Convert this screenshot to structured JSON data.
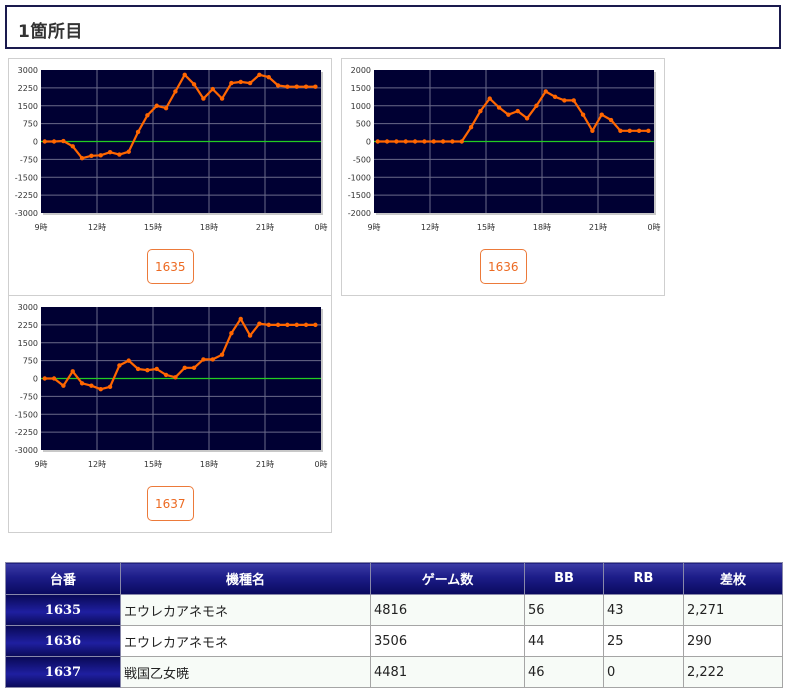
{
  "section": {
    "title": "1箇所目"
  },
  "colors": {
    "plot_bg": "#000033",
    "grid": "#6a6a8a",
    "zero_line": "#22cc22",
    "series_line": "#ff6600",
    "button_text": "#ec6a22",
    "header_bg": "#1c1c88"
  },
  "charts": [
    {
      "button_label": "1635",
      "chart_data": {
        "type": "line",
        "x_tick_labels": [
          "9時",
          "12時",
          "15時",
          "18時",
          "21時",
          "0時"
        ],
        "x_range": [
          9,
          24
        ],
        "y_ticks": [
          3000,
          2250,
          1500,
          750,
          0,
          -750,
          -1500,
          -2250,
          -3000
        ],
        "y_tick_labels": [
          "3000",
          "2250",
          "1500",
          "750",
          "0",
          "-750",
          "-1500",
          "-2250",
          "-3000"
        ],
        "ylim": [
          -3000,
          3000
        ],
        "grid": true,
        "series": [
          {
            "x": [
              9.2,
              9.7,
              10.2,
              10.7,
              11.2,
              11.7,
              12.2,
              12.7,
              13.2,
              13.7,
              14.2,
              14.7,
              15.2,
              15.7,
              16.2,
              16.7,
              17.2,
              17.7,
              18.2,
              18.7,
              19.2,
              19.7,
              20.2,
              20.7,
              21.2,
              21.7,
              22.2,
              22.7,
              23.2,
              23.7
            ],
            "y": [
              0,
              0,
              20,
              -200,
              -700,
              -600,
              -580,
              -450,
              -550,
              -430,
              400,
              1100,
              1500,
              1400,
              2100,
              2800,
              2400,
              1800,
              2200,
              1800,
              2450,
              2500,
              2450,
              2800,
              2700,
              2350,
              2300,
              2300,
              2300,
              2300
            ]
          }
        ]
      }
    },
    {
      "button_label": "1636",
      "chart_data": {
        "type": "line",
        "x_tick_labels": [
          "9時",
          "12時",
          "15時",
          "18時",
          "21時",
          "0時"
        ],
        "x_range": [
          9,
          24
        ],
        "y_ticks": [
          2000,
          1500,
          1000,
          500,
          0,
          -500,
          -1000,
          -1500,
          -2000
        ],
        "y_tick_labels": [
          "2000",
          "1500",
          "1000",
          "500",
          "0",
          "-500",
          "-1000",
          "-1500",
          "-2000"
        ],
        "ylim": [
          -2000,
          2000
        ],
        "grid": true,
        "series": [
          {
            "x": [
              9.2,
              9.7,
              10.2,
              10.7,
              11.2,
              11.7,
              12.2,
              12.7,
              13.2,
              13.7,
              14.2,
              14.7,
              15.2,
              15.7,
              16.2,
              16.7,
              17.2,
              17.7,
              18.2,
              18.7,
              19.2,
              19.7,
              20.2,
              20.7,
              21.2,
              21.7,
              22.2,
              22.7,
              23.2,
              23.7
            ],
            "y": [
              0,
              0,
              0,
              0,
              0,
              0,
              0,
              0,
              0,
              0,
              400,
              850,
              1200,
              950,
              750,
              850,
              650,
              1000,
              1400,
              1250,
              1150,
              1150,
              750,
              300,
              750,
              600,
              300,
              300,
              300,
              300
            ]
          }
        ]
      }
    },
    {
      "button_label": "1637",
      "chart_data": {
        "type": "line",
        "x_tick_labels": [
          "9時",
          "12時",
          "15時",
          "18時",
          "21時",
          "0時"
        ],
        "x_range": [
          9,
          24
        ],
        "y_ticks": [
          3000,
          2250,
          1500,
          750,
          0,
          -750,
          -1500,
          -2250,
          -3000
        ],
        "y_tick_labels": [
          "3000",
          "2250",
          "1500",
          "750",
          "0",
          "-750",
          "-1500",
          "-2250",
          "-3000"
        ],
        "ylim": [
          -3000,
          3000
        ],
        "grid": true,
        "series": [
          {
            "x": [
              9.2,
              9.7,
              10.2,
              10.7,
              11.2,
              11.7,
              12.2,
              12.7,
              13.2,
              13.7,
              14.2,
              14.7,
              15.2,
              15.7,
              16.2,
              16.7,
              17.2,
              17.7,
              18.2,
              18.7,
              19.2,
              19.7,
              20.2,
              20.7,
              21.2,
              21.7,
              22.2,
              22.7,
              23.2,
              23.7
            ],
            "y": [
              0,
              0,
              -300,
              300,
              -200,
              -300,
              -450,
              -350,
              550,
              750,
              400,
              350,
              400,
              150,
              50,
              450,
              450,
              800,
              800,
              1000,
              1900,
              2500,
              1800,
              2300,
              2250,
              2250,
              2250,
              2250,
              2250,
              2250
            ]
          }
        ]
      }
    }
  ],
  "table": {
    "headers": [
      "台番",
      "機種名",
      "ゲーム数",
      "BB",
      "RB",
      "差枚"
    ],
    "rows": [
      {
        "id": "1635",
        "name": "エウレカアネモネ",
        "games": "4816",
        "bb": "56",
        "rb": "43",
        "diff": "2,271"
      },
      {
        "id": "1636",
        "name": "エウレカアネモネ",
        "games": "3506",
        "bb": "44",
        "rb": "25",
        "diff": "290"
      },
      {
        "id": "1637",
        "name": "戦国乙女暁",
        "games": "4481",
        "bb": "46",
        "rb": "0",
        "diff": "2,222"
      }
    ]
  }
}
